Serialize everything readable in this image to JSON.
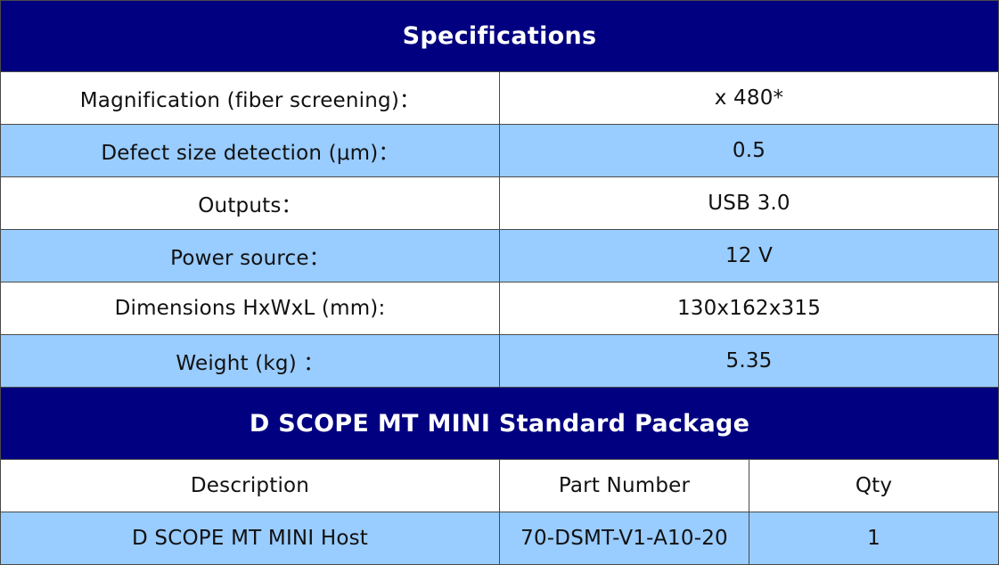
{
  "specs": {
    "title": "Specifications",
    "rows": [
      {
        "label": "Magnification (fiber screening)：",
        "value": "x 480*"
      },
      {
        "label": "Defect size detection (μm)：",
        "value": "0.5"
      },
      {
        "label": "Outputs：",
        "value": "USB 3.0"
      },
      {
        "label": "Power source：",
        "value": "12 V"
      },
      {
        "label": "Dimensions HxWxL (mm):",
        "value": "130x162x315"
      },
      {
        "label": "Weight (kg) ：",
        "value": "5.35"
      }
    ]
  },
  "package": {
    "title": "D SCOPE MT MINI  Standard Package",
    "columns": [
      "Description",
      "Part Number",
      "Qty"
    ],
    "rows": [
      {
        "description": "D SCOPE MT MINI Host",
        "part_number": "70-DSMT-V1-A10-20",
        "qty": "1"
      }
    ]
  },
  "colors": {
    "header_bg": "#000080",
    "header_text": "#ffffff",
    "alt_row_bg": "#99ccff",
    "row_bg": "#ffffff"
  }
}
